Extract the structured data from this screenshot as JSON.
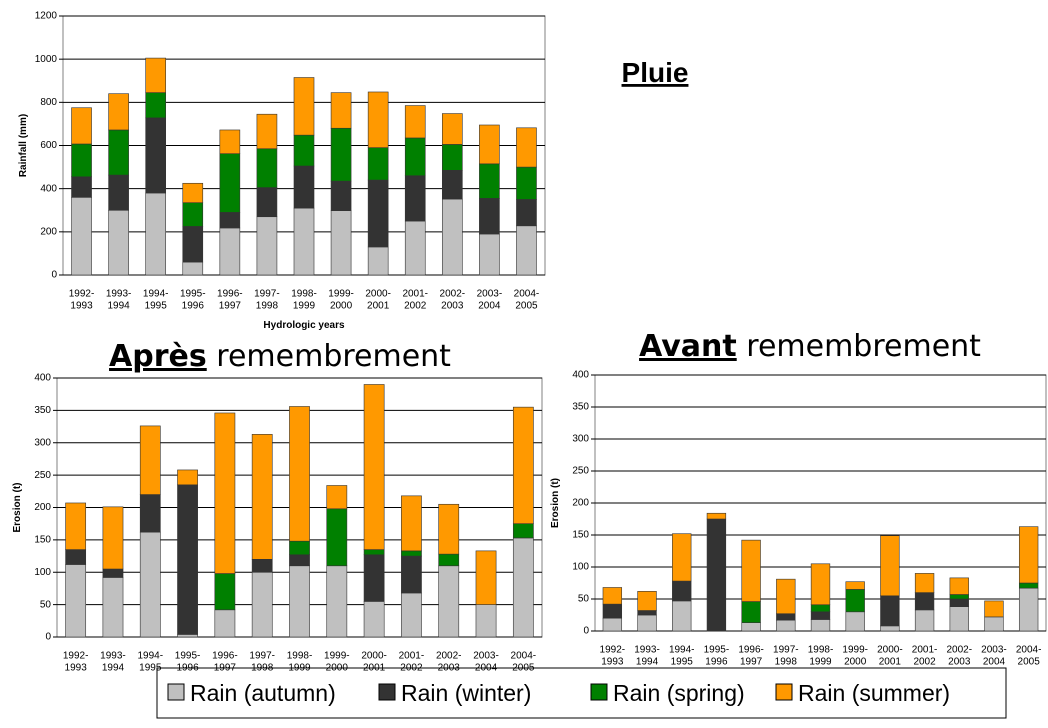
{
  "headings": {
    "pluie": "Pluie",
    "apres": {
      "bold": "Après",
      "rest": "remembrement"
    },
    "avant": {
      "bold": "Avant",
      "rest": "remembrement"
    }
  },
  "legend": [
    {
      "name": "Rain (autumn)",
      "color": "#c0c0c0"
    },
    {
      "name": "Rain (winter)",
      "color": "#333333"
    },
    {
      "name": "Rain (spring)",
      "color": "#008000"
    },
    {
      "name": "Rain (summer)",
      "color": "#ff9900"
    }
  ],
  "chart_data": [
    {
      "type": "stacked_bar",
      "y_label": "Rainfall (mm)",
      "x_label": "Hydrologic years",
      "categories": [
        [
          "1992-",
          "1993"
        ],
        [
          "1993-",
          "1994"
        ],
        [
          "1994-",
          "1995"
        ],
        [
          "1995-",
          "1996"
        ],
        [
          "1996-",
          "1997"
        ],
        [
          "1997-",
          "1998"
        ],
        [
          "1998-",
          "1999"
        ],
        [
          "1999-",
          "2000"
        ],
        [
          "2000-",
          "2001"
        ],
        [
          "2001-",
          "2002"
        ],
        [
          "2002-",
          "2003"
        ],
        [
          "2003-",
          "2004"
        ],
        [
          "2004-",
          "2005"
        ]
      ],
      "ylim": [
        0,
        1200
      ],
      "yticks": [
        0,
        200,
        400,
        600,
        800,
        1000,
        1200
      ],
      "grid": true,
      "series": [
        {
          "values": [
            360,
            300,
            380,
            60,
            218,
            270,
            310,
            298,
            130,
            250,
            352,
            190,
            228
          ]
        },
        {
          "values": [
            95,
            163,
            348,
            165,
            72,
            135,
            195,
            137,
            310,
            210,
            133,
            165,
            122
          ]
        },
        {
          "values": [
            152,
            209,
            117,
            110,
            272,
            180,
            143,
            245,
            150,
            175,
            120,
            160,
            150
          ]
        },
        {
          "values": [
            168,
            168,
            160,
            90,
            110,
            160,
            267,
            165,
            258,
            150,
            143,
            180,
            182
          ]
        }
      ]
    },
    {
      "type": "stacked_bar",
      "y_label": "Erosion (t)",
      "categories": [
        [
          "1992-",
          "1993"
        ],
        [
          "1993-",
          "1994"
        ],
        [
          "1994-",
          "1995"
        ],
        [
          "1995-",
          "1996"
        ],
        [
          "1996-",
          "1997"
        ],
        [
          "1997-",
          "1998"
        ],
        [
          "1998-",
          "1999"
        ],
        [
          "1999-",
          "2000"
        ],
        [
          "2000-",
          "2001"
        ],
        [
          "2001-",
          "2002"
        ],
        [
          "2002-",
          "2003"
        ],
        [
          "2003-",
          "2004"
        ],
        [
          "2004-",
          "2005"
        ]
      ],
      "ylim": [
        0,
        400
      ],
      "yticks": [
        0,
        50,
        100,
        150,
        200,
        250,
        300,
        350,
        400
      ],
      "grid": true,
      "series": [
        {
          "values": [
            112,
            92,
            162,
            4,
            42,
            100,
            110,
            110,
            55,
            68,
            110,
            50,
            153
          ]
        },
        {
          "values": [
            23,
            13,
            58,
            231,
            0,
            20,
            17,
            0,
            72,
            57,
            0,
            0,
            0
          ]
        },
        {
          "values": [
            0,
            0,
            0,
            0,
            56,
            0,
            21,
            88,
            8,
            8,
            18,
            0,
            22
          ]
        },
        {
          "values": [
            72,
            96,
            106,
            23,
            248,
            193,
            208,
            36,
            255,
            85,
            77,
            83,
            180
          ]
        }
      ]
    },
    {
      "type": "stacked_bar",
      "y_label": "Erosion (t)",
      "categories": [
        [
          "1992-",
          "1993"
        ],
        [
          "1993-",
          "1994"
        ],
        [
          "1994-",
          "1995"
        ],
        [
          "1995-",
          "1996"
        ],
        [
          "1996-",
          "1997"
        ],
        [
          "1997-",
          "1998"
        ],
        [
          "1998-",
          "1999"
        ],
        [
          "1999-",
          "2000"
        ],
        [
          "2000-",
          "2001"
        ],
        [
          "2001-",
          "2002"
        ],
        [
          "2002-",
          "2003"
        ],
        [
          "2003-",
          "2004"
        ],
        [
          "2004-",
          "2005"
        ]
      ],
      "ylim": [
        0,
        400
      ],
      "yticks": [
        0,
        50,
        100,
        150,
        200,
        250,
        300,
        350,
        400
      ],
      "grid": true,
      "series": [
        {
          "values": [
            20,
            25,
            47,
            0,
            13,
            17,
            18,
            30,
            8,
            33,
            38,
            22,
            67
          ]
        },
        {
          "values": [
            22,
            7,
            31,
            175,
            0,
            10,
            12,
            0,
            47,
            27,
            12,
            0,
            0
          ]
        },
        {
          "values": [
            0,
            0,
            0,
            0,
            33,
            0,
            11,
            35,
            0,
            0,
            7,
            0,
            8
          ]
        },
        {
          "values": [
            26,
            30,
            74,
            9,
            96,
            54,
            64,
            12,
            94,
            30,
            26,
            25,
            88
          ]
        }
      ]
    }
  ]
}
